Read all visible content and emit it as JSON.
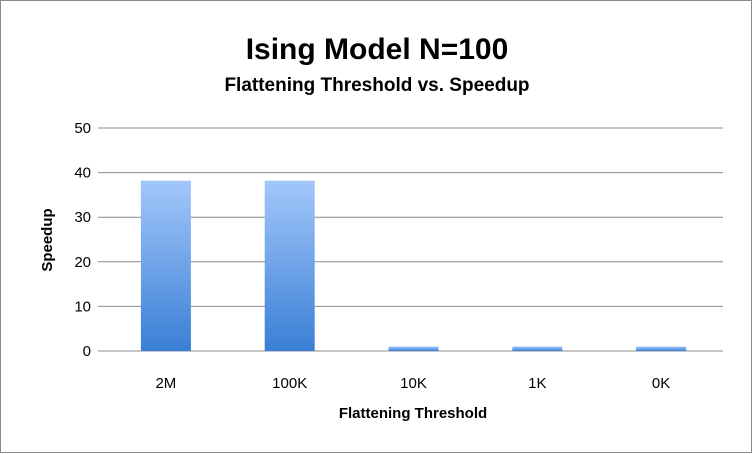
{
  "chart_data": {
    "type": "bar",
    "title": "Ising Model N=100",
    "subtitle": "Flattening Threshold vs. Speedup",
    "xlabel": "Flattening Threshold",
    "ylabel": "Speedup",
    "categories": [
      "2M",
      "100K",
      "10K",
      "1K",
      "0K"
    ],
    "values": [
      38.2,
      38.2,
      1.0,
      1.0,
      1.0
    ],
    "ylim": [
      0,
      50
    ],
    "yticks": [
      "0",
      "10",
      "20",
      "30",
      "40",
      "50"
    ],
    "grid": true,
    "legend": "none",
    "colors": {
      "bar_top": "#a3c7fb",
      "bar_bottom": "#3a7fd5",
      "grid": "#8c8c8c"
    }
  }
}
